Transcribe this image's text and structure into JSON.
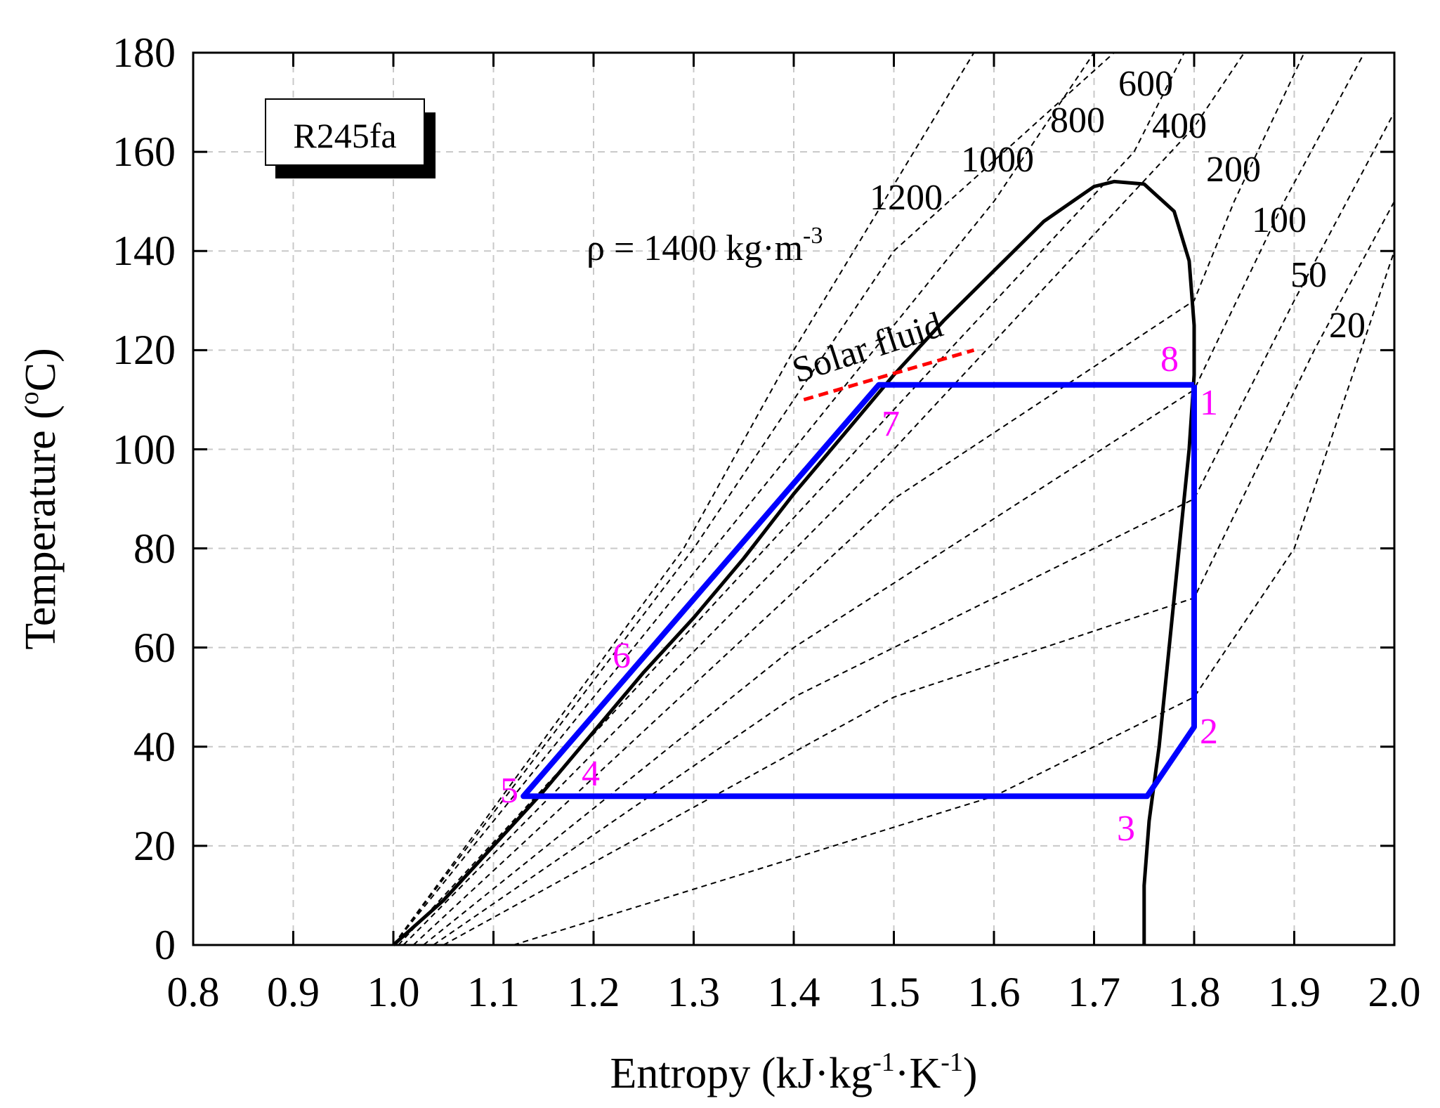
{
  "chart_data": {
    "type": "line",
    "title": "",
    "xlabel": {
      "base": "Entropy (kJ·kg",
      "sup1": "-1",
      "mid": "·K",
      "sup2": "-1",
      "end": ")"
    },
    "ylabel": {
      "base": "Temperature (",
      "sup": "o",
      "end": "C)"
    },
    "xlim": [
      0.8,
      2.0
    ],
    "ylim": [
      0,
      180
    ],
    "xticks": [
      "0.8",
      "0.9",
      "1.0",
      "1.1",
      "1.2",
      "1.3",
      "1.4",
      "1.5",
      "1.6",
      "1.7",
      "1.8",
      "1.9",
      "2.0"
    ],
    "yticks": [
      "0",
      "20",
      "40",
      "60",
      "80",
      "100",
      "120",
      "140",
      "160",
      "180"
    ],
    "grid": true,
    "fluid_box": "R245fa",
    "saturation_dome": [
      [
        1.0,
        0
      ],
      [
        1.05,
        9
      ],
      [
        1.1,
        20
      ],
      [
        1.15,
        31
      ],
      [
        1.2,
        43
      ],
      [
        1.25,
        55
      ],
      [
        1.3,
        66
      ],
      [
        1.35,
        78
      ],
      [
        1.4,
        91
      ],
      [
        1.45,
        103
      ],
      [
        1.5,
        115
      ],
      [
        1.55,
        126
      ],
      [
        1.6,
        136
      ],
      [
        1.65,
        146
      ],
      [
        1.7,
        153
      ],
      [
        1.72,
        154
      ],
      [
        1.75,
        153.5
      ],
      [
        1.78,
        148
      ],
      [
        1.795,
        138
      ],
      [
        1.8,
        125
      ],
      [
        1.8,
        115
      ],
      [
        1.795,
        100
      ],
      [
        1.785,
        80
      ],
      [
        1.775,
        60
      ],
      [
        1.765,
        40
      ],
      [
        1.755,
        25
      ],
      [
        1.75,
        12
      ],
      [
        1.75,
        0
      ]
    ],
    "isochores": [
      {
        "label": "1400",
        "points": [
          [
            1.0,
            0
          ],
          [
            1.29,
            80
          ],
          [
            1.4,
            120
          ],
          [
            1.58,
            180
          ]
        ]
      },
      {
        "label": "1200",
        "points": [
          [
            1.0,
            0
          ],
          [
            1.3,
            80
          ],
          [
            1.5,
            140
          ],
          [
            1.72,
            180
          ]
        ]
      },
      {
        "label": "1000",
        "points": [
          [
            1.0,
            0
          ],
          [
            1.3,
            75
          ],
          [
            1.6,
            150
          ],
          [
            1.7,
            180
          ]
        ]
      },
      {
        "label": "800",
        "points": [
          [
            1.005,
            0
          ],
          [
            1.5,
            108
          ],
          [
            1.74,
            160
          ],
          [
            1.79,
            180
          ]
        ]
      },
      {
        "label": "600",
        "points": [
          [
            1.01,
            0
          ],
          [
            1.5,
            100
          ],
          [
            1.8,
            165
          ],
          [
            1.85,
            180
          ]
        ]
      },
      {
        "label": "400",
        "points": [
          [
            1.02,
            0
          ],
          [
            1.5,
            90
          ],
          [
            1.8,
            130
          ],
          [
            1.84,
            150
          ],
          [
            1.91,
            180
          ]
        ]
      },
      {
        "label": "200",
        "points": [
          [
            1.03,
            0
          ],
          [
            1.4,
            60
          ],
          [
            1.8,
            112
          ],
          [
            1.89,
            150
          ],
          [
            1.97,
            180
          ]
        ]
      },
      {
        "label": "100",
        "points": [
          [
            1.04,
            0
          ],
          [
            1.4,
            50
          ],
          [
            1.8,
            90
          ],
          [
            1.9,
            130
          ],
          [
            2.0,
            168
          ]
        ]
      },
      {
        "label": "50",
        "points": [
          [
            1.05,
            0
          ],
          [
            1.5,
            50
          ],
          [
            1.8,
            70
          ],
          [
            1.92,
            120
          ],
          [
            2.0,
            150
          ]
        ]
      },
      {
        "label": "20",
        "points": [
          [
            1.12,
            0
          ],
          [
            1.6,
            30
          ],
          [
            1.8,
            50
          ],
          [
            1.9,
            80
          ],
          [
            2.0,
            140
          ]
        ]
      }
    ],
    "isochore_labels": {
      "rho_prefix": "ρ = 1400 kg·m",
      "rho_sup": "-3",
      "l1200": "1200",
      "l1000": "1000",
      "l800": "800",
      "l600": "600",
      "l400": "400",
      "l200": "200",
      "l100": "100",
      "l50": "50",
      "l20": "20"
    },
    "cycle_points": [
      {
        "id": "1",
        "s": 1.8,
        "T": 113
      },
      {
        "id": "2",
        "s": 1.8,
        "T": 44
      },
      {
        "id": "3",
        "s": 1.753,
        "T": 30
      },
      {
        "id": "4",
        "s": 1.13,
        "T": 30
      },
      {
        "id": "5",
        "s": 1.13,
        "T": 30
      },
      {
        "id": "6",
        "s": 1.22,
        "T": 53
      },
      {
        "id": "7",
        "s": 1.485,
        "T": 113
      },
      {
        "id": "8",
        "s": 1.8,
        "T": 113
      }
    ],
    "cycle_path": [
      [
        1.8,
        113
      ],
      [
        1.8,
        44
      ],
      [
        1.753,
        30
      ],
      [
        1.13,
        30
      ],
      [
        1.485,
        113
      ],
      [
        1.8,
        113
      ]
    ],
    "solar_fluid": {
      "label": "Solar fluid",
      "points": [
        [
          1.41,
          110
        ],
        [
          1.58,
          120
        ]
      ]
    },
    "colors": {
      "cycle": "#0000ff",
      "dome": "#000000",
      "isochore": "#000000",
      "solar": "#ff0000",
      "point_labels": "#ff00ff"
    }
  }
}
